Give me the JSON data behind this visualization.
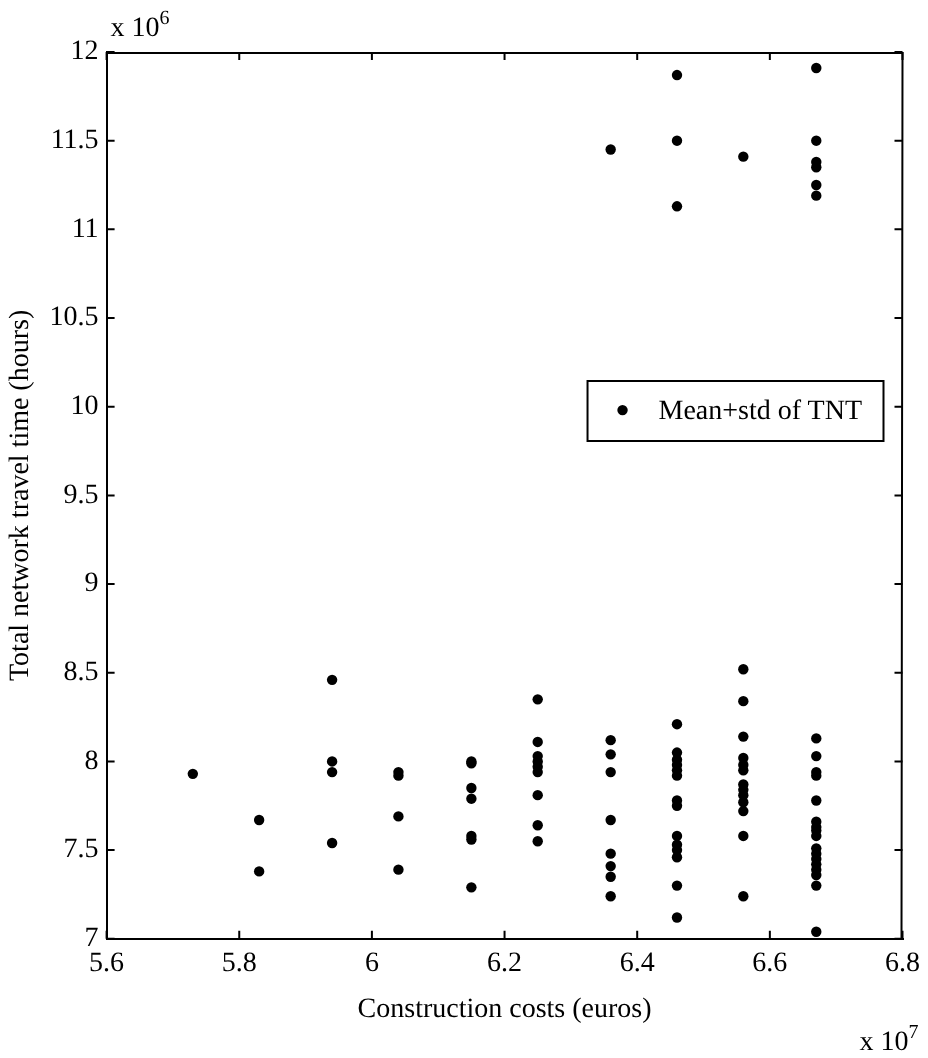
{
  "chart_data": {
    "type": "scatter",
    "xlabel": "Construction costs (euros)",
    "ylabel": "Total network travel time (hours)",
    "annotations": [
      "x 10$^{7}$",
      "x 10$^{6}$"
    ],
    "xlim": [
      5.6,
      6.8
    ],
    "xticks": [
      5.6,
      5.8,
      6,
      6.2,
      6.4,
      6.6,
      6.8
    ],
    "ylim": [
      7,
      12
    ],
    "yticks": [
      7,
      7.5,
      8,
      8.5,
      9,
      9.5,
      10,
      10.5,
      11,
      11.5,
      12
    ],
    "grid": false,
    "legend": "right",
    "marker": "circle",
    "series": [
      {
        "name": "Mean+std of TNT",
        "color": "#000000",
        "x": [
          5.73,
          5.83,
          5.83,
          5.94,
          5.94,
          5.94,
          5.94,
          6.04,
          6.04,
          6.04,
          6.04,
          6.15,
          6.15,
          6.15,
          6.15,
          6.15,
          6.15,
          6.15,
          6.25,
          6.25,
          6.25,
          6.25,
          6.25,
          6.25,
          6.25,
          6.25,
          6.25,
          6.36,
          6.36,
          6.36,
          6.36,
          6.36,
          6.36,
          6.36,
          6.36,
          6.36,
          6.46,
          6.46,
          6.46,
          6.46,
          6.46,
          6.46,
          6.46,
          6.46,
          6.46,
          6.46,
          6.46,
          6.46,
          6.46,
          6.46,
          6.46,
          6.46,
          6.46,
          6.56,
          6.56,
          6.56,
          6.56,
          6.56,
          6.56,
          6.56,
          6.56,
          6.56,
          6.56,
          6.56,
          6.56,
          6.56,
          6.56,
          6.67,
          6.67,
          6.67,
          6.67,
          6.67,
          6.67,
          6.67,
          6.67,
          6.67,
          6.67,
          6.67,
          6.67,
          6.67,
          6.67,
          6.67,
          6.67,
          6.67,
          6.67,
          6.67,
          6.67,
          6.67,
          6.67,
          6.67
        ],
        "values": [
          7.93,
          7.67,
          7.38,
          8.46,
          8.0,
          7.94,
          7.54,
          7.94,
          7.92,
          7.69,
          7.39,
          8.0,
          7.99,
          7.85,
          7.79,
          7.58,
          7.56,
          7.29,
          8.35,
          8.11,
          8.03,
          8.0,
          7.97,
          7.94,
          7.81,
          7.64,
          7.55,
          8.12,
          8.04,
          7.94,
          7.67,
          7.48,
          7.41,
          7.35,
          7.24,
          11.45,
          8.21,
          8.05,
          8.01,
          7.98,
          7.95,
          7.92,
          7.78,
          7.75,
          7.58,
          7.53,
          7.5,
          7.46,
          7.3,
          7.12,
          11.87,
          11.5,
          11.13,
          8.52,
          8.34,
          8.14,
          8.02,
          7.98,
          7.95,
          7.87,
          7.84,
          7.81,
          7.77,
          7.72,
          7.58,
          7.24,
          11.41,
          8.13,
          8.03,
          7.94,
          7.92,
          7.78,
          7.66,
          7.63,
          7.61,
          7.58,
          7.51,
          7.48,
          7.45,
          7.42,
          7.39,
          7.36,
          7.3,
          7.04,
          11.91,
          11.5,
          11.38,
          11.35,
          11.25,
          11.19
        ]
      }
    ]
  }
}
